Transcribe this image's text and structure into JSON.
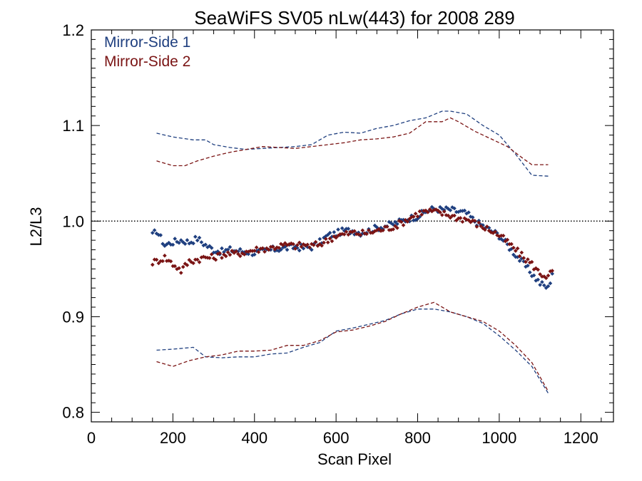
{
  "chart_data": {
    "type": "scatter",
    "title": "SeaWiFS SV05 nLw(443) for 2008 289",
    "xlabel": "Scan Pixel",
    "ylabel": "L2/L3",
    "xlim": [
      0,
      1280
    ],
    "ylim": [
      0.79,
      1.2
    ],
    "x_ticks": [
      0,
      200,
      400,
      600,
      800,
      1000,
      1200
    ],
    "x_tick_labels": [
      "0",
      "200",
      "400",
      "600",
      "800",
      "1000",
      "1200"
    ],
    "y_ticks": [
      0.8,
      0.9,
      1.0,
      1.1,
      1.2
    ],
    "y_tick_labels": [
      "0.8",
      "0.9",
      "1.0",
      "1.1",
      "1.2"
    ],
    "reference_line": {
      "y": 1.0,
      "style": "dotted",
      "color": "#000000"
    },
    "legend": {
      "placement": "top-left",
      "entries": [
        "Mirror-Side 1",
        "Mirror-Side 2"
      ]
    },
    "grid": false,
    "colors": {
      "Mirror-Side 1": "#1f3f7f",
      "Mirror-Side 2": "#7a1414"
    },
    "series": [
      {
        "name": "Mirror-Side 1",
        "color": "#1f3f7f",
        "ratio_points": [
          [
            150,
            0.985
          ],
          [
            160,
            0.99
          ],
          [
            180,
            0.975
          ],
          [
            200,
            0.978
          ],
          [
            220,
            0.98
          ],
          [
            240,
            0.978
          ],
          [
            260,
            0.982
          ],
          [
            280,
            0.975
          ],
          [
            300,
            0.97
          ],
          [
            320,
            0.968
          ],
          [
            340,
            0.97
          ],
          [
            360,
            0.969
          ],
          [
            380,
            0.968
          ],
          [
            400,
            0.967
          ],
          [
            420,
            0.968
          ],
          [
            440,
            0.97
          ],
          [
            460,
            0.971
          ],
          [
            480,
            0.972
          ],
          [
            500,
            0.973
          ],
          [
            520,
            0.972
          ],
          [
            540,
            0.973
          ],
          [
            560,
            0.978
          ],
          [
            580,
            0.985
          ],
          [
            600,
            0.987
          ],
          [
            620,
            0.99
          ],
          [
            640,
            0.99
          ],
          [
            660,
            0.988
          ],
          [
            680,
            0.99
          ],
          [
            700,
            0.993
          ],
          [
            720,
            0.995
          ],
          [
            740,
            0.997
          ],
          [
            760,
            1.0
          ],
          [
            780,
            1.003
          ],
          [
            800,
            1.005
          ],
          [
            820,
            1.01
          ],
          [
            840,
            1.013
          ],
          [
            860,
            1.012
          ],
          [
            880,
            1.012
          ],
          [
            900,
            1.01
          ],
          [
            920,
            1.008
          ],
          [
            940,
            1.0
          ],
          [
            960,
            0.995
          ],
          [
            980,
            0.99
          ],
          [
            1000,
            0.985
          ],
          [
            1020,
            0.975
          ],
          [
            1040,
            0.965
          ],
          [
            1060,
            0.955
          ],
          [
            1080,
            0.945
          ],
          [
            1100,
            0.935
          ],
          [
            1120,
            0.93
          ],
          [
            1130,
            0.945
          ]
        ],
        "upper_bound": [
          [
            160,
            1.092
          ],
          [
            200,
            1.088
          ],
          [
            250,
            1.085
          ],
          [
            280,
            1.085
          ],
          [
            300,
            1.08
          ],
          [
            340,
            1.077
          ],
          [
            380,
            1.075
          ],
          [
            420,
            1.076
          ],
          [
            460,
            1.077
          ],
          [
            500,
            1.078
          ],
          [
            540,
            1.08
          ],
          [
            580,
            1.09
          ],
          [
            620,
            1.093
          ],
          [
            660,
            1.092
          ],
          [
            700,
            1.097
          ],
          [
            740,
            1.1
          ],
          [
            780,
            1.105
          ],
          [
            820,
            1.108
          ],
          [
            860,
            1.115
          ],
          [
            880,
            1.115
          ],
          [
            920,
            1.112
          ],
          [
            960,
            1.1
          ],
          [
            1000,
            1.09
          ],
          [
            1040,
            1.07
          ],
          [
            1080,
            1.048
          ],
          [
            1120,
            1.047
          ]
        ],
        "lower_bound": [
          [
            160,
            0.865
          ],
          [
            200,
            0.866
          ],
          [
            250,
            0.868
          ],
          [
            280,
            0.858
          ],
          [
            320,
            0.857
          ],
          [
            360,
            0.858
          ],
          [
            400,
            0.858
          ],
          [
            440,
            0.861
          ],
          [
            480,
            0.862
          ],
          [
            520,
            0.868
          ],
          [
            560,
            0.873
          ],
          [
            600,
            0.885
          ],
          [
            640,
            0.888
          ],
          [
            680,
            0.892
          ],
          [
            720,
            0.896
          ],
          [
            760,
            0.903
          ],
          [
            800,
            0.908
          ],
          [
            840,
            0.908
          ],
          [
            880,
            0.905
          ],
          [
            920,
            0.9
          ],
          [
            960,
            0.893
          ],
          [
            1000,
            0.88
          ],
          [
            1040,
            0.865
          ],
          [
            1080,
            0.848
          ],
          [
            1120,
            0.82
          ]
        ]
      },
      {
        "name": "Mirror-Side 2",
        "color": "#7a1414",
        "ratio_points": [
          [
            150,
            0.957
          ],
          [
            160,
            0.958
          ],
          [
            180,
            0.962
          ],
          [
            200,
            0.955
          ],
          [
            210,
            0.952
          ],
          [
            220,
            0.948
          ],
          [
            240,
            0.958
          ],
          [
            260,
            0.96
          ],
          [
            280,
            0.962
          ],
          [
            300,
            0.962
          ],
          [
            320,
            0.965
          ],
          [
            340,
            0.966
          ],
          [
            360,
            0.966
          ],
          [
            380,
            0.968
          ],
          [
            400,
            0.97
          ],
          [
            420,
            0.971
          ],
          [
            440,
            0.972
          ],
          [
            460,
            0.974
          ],
          [
            480,
            0.975
          ],
          [
            500,
            0.974
          ],
          [
            520,
            0.975
          ],
          [
            540,
            0.974
          ],
          [
            560,
            0.976
          ],
          [
            580,
            0.98
          ],
          [
            600,
            0.985
          ],
          [
            620,
            0.986
          ],
          [
            640,
            0.988
          ],
          [
            660,
            0.987
          ],
          [
            680,
            0.988
          ],
          [
            700,
            0.99
          ],
          [
            720,
            0.992
          ],
          [
            740,
            0.994
          ],
          [
            760,
            0.998
          ],
          [
            780,
            1.003
          ],
          [
            800,
            1.008
          ],
          [
            820,
            1.01
          ],
          [
            840,
            1.01
          ],
          [
            860,
            1.008
          ],
          [
            880,
            1.006
          ],
          [
            900,
            1.003
          ],
          [
            920,
            1.002
          ],
          [
            940,
            0.998
          ],
          [
            960,
            0.994
          ],
          [
            980,
            0.99
          ],
          [
            1000,
            0.985
          ],
          [
            1020,
            0.978
          ],
          [
            1040,
            0.97
          ],
          [
            1060,
            0.962
          ],
          [
            1080,
            0.955
          ],
          [
            1100,
            0.945
          ],
          [
            1120,
            0.942
          ],
          [
            1130,
            0.948
          ]
        ],
        "upper_bound": [
          [
            160,
            1.063
          ],
          [
            200,
            1.058
          ],
          [
            230,
            1.058
          ],
          [
            260,
            1.063
          ],
          [
            300,
            1.068
          ],
          [
            340,
            1.072
          ],
          [
            380,
            1.075
          ],
          [
            420,
            1.078
          ],
          [
            460,
            1.077
          ],
          [
            500,
            1.076
          ],
          [
            540,
            1.078
          ],
          [
            580,
            1.08
          ],
          [
            620,
            1.082
          ],
          [
            660,
            1.085
          ],
          [
            700,
            1.086
          ],
          [
            740,
            1.088
          ],
          [
            780,
            1.092
          ],
          [
            800,
            1.098
          ],
          [
            820,
            1.104
          ],
          [
            860,
            1.104
          ],
          [
            880,
            1.108
          ],
          [
            900,
            1.104
          ],
          [
            940,
            1.094
          ],
          [
            980,
            1.086
          ],
          [
            1020,
            1.078
          ],
          [
            1060,
            1.065
          ],
          [
            1080,
            1.059
          ],
          [
            1120,
            1.059
          ]
        ],
        "lower_bound": [
          [
            160,
            0.853
          ],
          [
            200,
            0.848
          ],
          [
            240,
            0.854
          ],
          [
            280,
            0.858
          ],
          [
            320,
            0.86
          ],
          [
            360,
            0.864
          ],
          [
            400,
            0.864
          ],
          [
            440,
            0.865
          ],
          [
            480,
            0.87
          ],
          [
            520,
            0.87
          ],
          [
            560,
            0.875
          ],
          [
            600,
            0.884
          ],
          [
            640,
            0.886
          ],
          [
            680,
            0.89
          ],
          [
            720,
            0.895
          ],
          [
            760,
            0.903
          ],
          [
            800,
            0.91
          ],
          [
            840,
            0.915
          ],
          [
            880,
            0.905
          ],
          [
            920,
            0.9
          ],
          [
            960,
            0.895
          ],
          [
            1000,
            0.885
          ],
          [
            1040,
            0.87
          ],
          [
            1080,
            0.852
          ],
          [
            1120,
            0.822
          ]
        ]
      }
    ]
  }
}
